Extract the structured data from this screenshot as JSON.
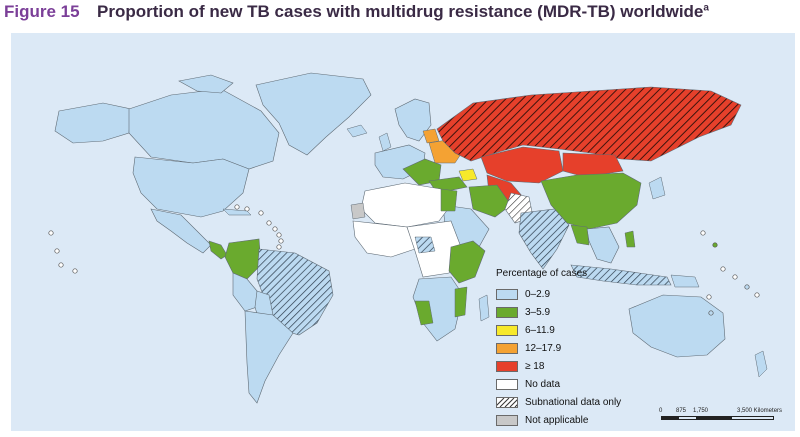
{
  "figure": {
    "label": "Figure 15",
    "title": "Proportion of new TB cases with multidrug resistance (MDR-TB) worldwide",
    "title_note": "a"
  },
  "legend": {
    "title": "Percentage of cases",
    "items": [
      {
        "label": "0–2.9",
        "color": "#bcdaf1",
        "hatch": false
      },
      {
        "label": "3–5.9",
        "color": "#6aaa2e",
        "hatch": false
      },
      {
        "label": "6–11.9",
        "color": "#f7e92b",
        "hatch": false
      },
      {
        "label": "12–17.9",
        "color": "#f4a233",
        "hatch": false
      },
      {
        "label": "≥ 18",
        "color": "#e6402b",
        "hatch": false
      },
      {
        "label": "No data",
        "color": "#ffffff",
        "hatch": false
      },
      {
        "label": "Subnational data only",
        "color": "#ffffff",
        "hatch": true
      },
      {
        "label": "Not applicable",
        "color": "#c8c8c8",
        "hatch": false
      }
    ]
  },
  "scale": {
    "ticks": [
      "0",
      "875",
      "1,750",
      "3,500 Kilometers"
    ]
  },
  "colors": {
    "ocean": "#dce9f6",
    "low": "#bcdaf1",
    "mid": "#6aaa2e",
    "high": "#e6402b",
    "orange": "#f4a233",
    "yellow": "#f7e92b",
    "nodata": "#ffffff",
    "na": "#c8c8c8",
    "title_purple": "#7b3f98"
  }
}
